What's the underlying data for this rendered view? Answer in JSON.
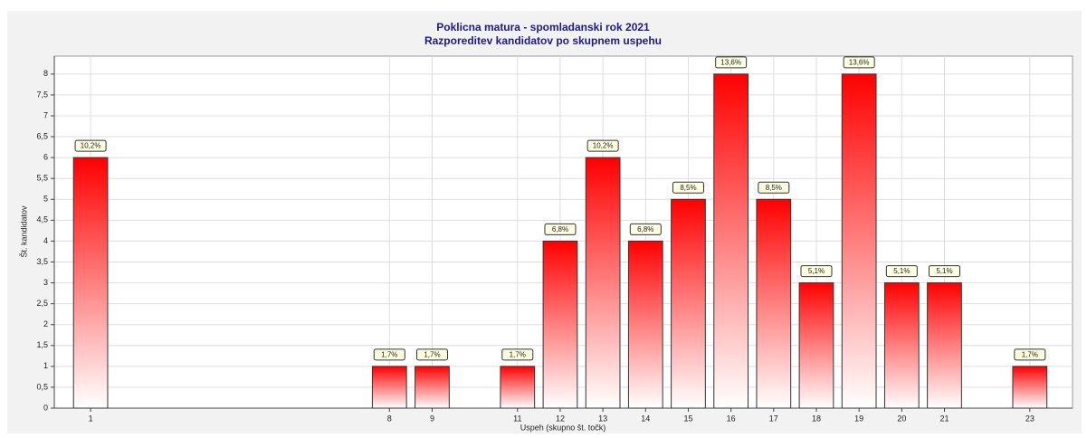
{
  "chart_data": {
    "type": "bar",
    "title": "Poklicna matura - spomladanski rok 2021",
    "subtitle": "Razporeditev kandidatov po skupnem uspehu",
    "x_label": "Uspeh (skupno št. točk)",
    "y_label": "Št. kandidatov",
    "x": [
      1,
      8,
      9,
      11,
      12,
      13,
      14,
      15,
      16,
      17,
      18,
      19,
      20,
      21,
      23
    ],
    "values": [
      6,
      1,
      1,
      1,
      4,
      6,
      4,
      5,
      8,
      5,
      3,
      8,
      3,
      3,
      1
    ],
    "bar_labels": [
      "10,2%",
      "1,7%",
      "1,7%",
      "1,7%",
      "6,8%",
      "10,2%",
      "6,8%",
      "8,5%",
      "13,6%",
      "8,5%",
      "5,1%",
      "13,6%",
      "5,1%",
      "5,1%",
      "1,7%"
    ],
    "color": "#ff0000",
    "xlim": [
      0.15,
      24
    ],
    "xticks": [
      1,
      8,
      9,
      11,
      12,
      13,
      14,
      15,
      16,
      17,
      18,
      19,
      20,
      21,
      23
    ],
    "ylim": [
      0,
      8.43
    ],
    "yticks": [
      0,
      {
        "value": 0.5,
        "label": "0,5"
      },
      1,
      {
        "value": 1.5,
        "label": "1,5"
      },
      2,
      {
        "value": 2.5,
        "label": "2,5"
      },
      3,
      {
        "value": 3.5,
        "label": "3,5"
      },
      4,
      {
        "value": 4.5,
        "label": "4,5"
      },
      5,
      {
        "value": 5.5,
        "label": "5,5"
      },
      6,
      {
        "value": 6.5,
        "label": "6,5"
      },
      7,
      {
        "value": 7.5,
        "label": "7,5"
      },
      8
    ],
    "grid": true
  }
}
